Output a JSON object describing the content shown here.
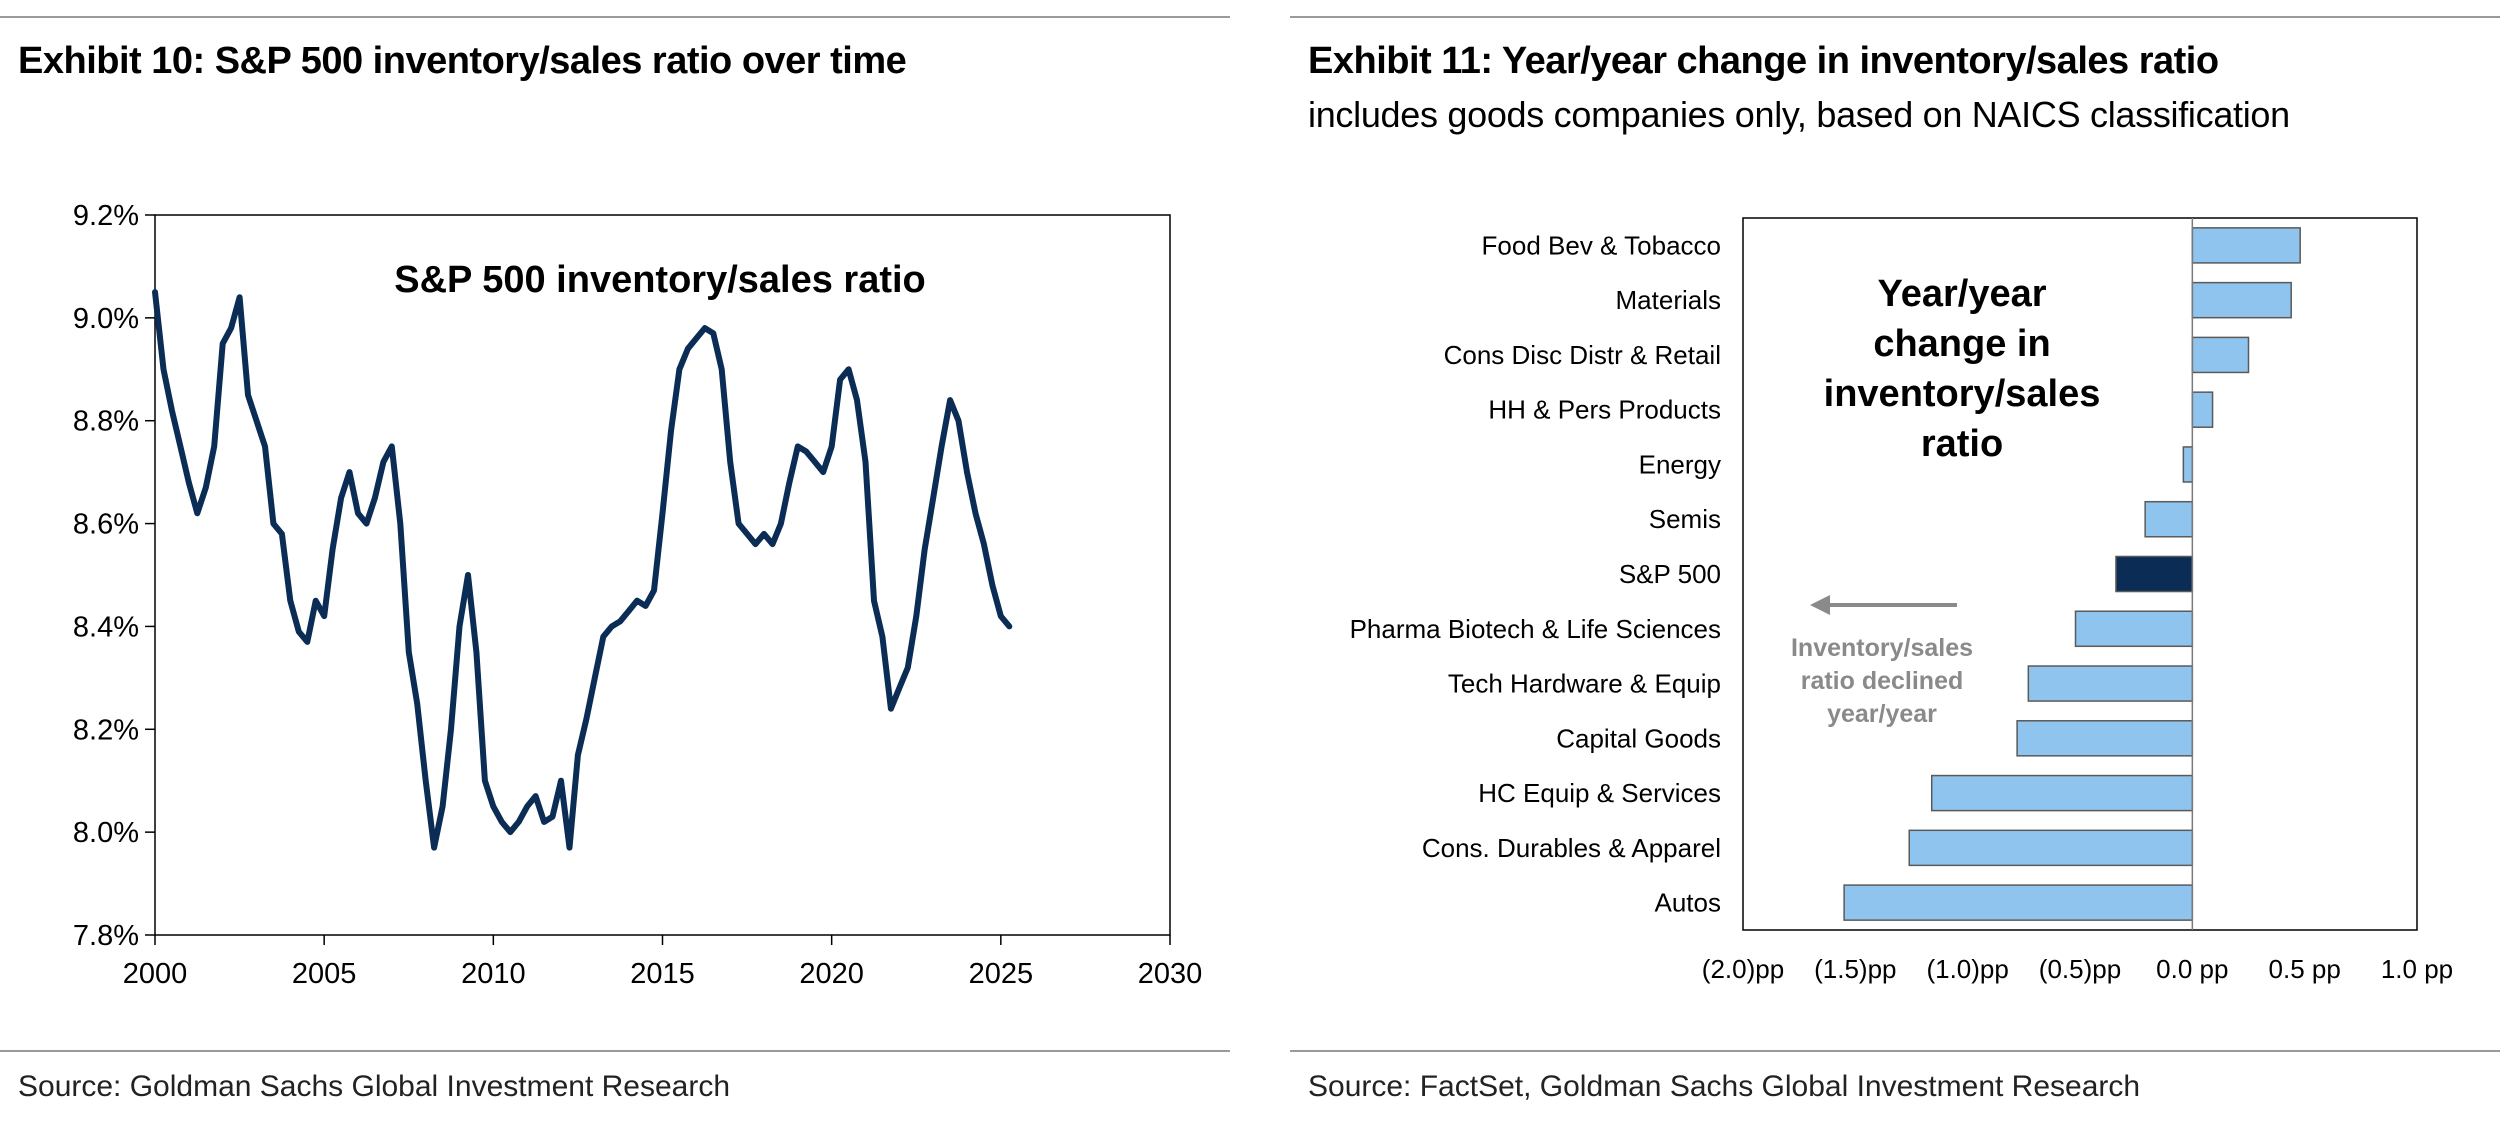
{
  "colors": {
    "line": "#0b2d55",
    "bar": "#8ec4ee",
    "bar_highlight": "#0b2d55",
    "bar_stroke": "#5a5a5a",
    "arrow": "#8a8a8a",
    "rule": "#9a9a9a"
  },
  "left": {
    "title": "Exhibit 10: S&P 500 inventory/sales ratio over time",
    "source": "Source: Goldman Sachs Global Investment Research"
  },
  "right": {
    "title": "Exhibit 11: Year/year change in inventory/sales ratio",
    "subtitle": "includes goods companies only, based on NAICS classification",
    "source": "Source: FactSet, Goldman Sachs Global Investment Research"
  },
  "chart_data": [
    {
      "type": "line",
      "title": "S&P 500 inventory/sales ratio",
      "xlabel": "",
      "ylabel": "",
      "xlim": [
        2000,
        2030
      ],
      "ylim": [
        7.8,
        9.2
      ],
      "xticks": [
        2000,
        2005,
        2010,
        2015,
        2020,
        2025,
        2030
      ],
      "yticks": [
        7.8,
        8.0,
        8.2,
        8.4,
        8.6,
        8.8,
        9.0,
        9.2
      ],
      "ytick_labels": [
        "7.8%",
        "8.0%",
        "8.2%",
        "8.4%",
        "8.6%",
        "8.8%",
        "9.0%",
        "9.2%"
      ],
      "grid": false,
      "series": [
        {
          "x": [
            2000.0,
            2000.25,
            2000.5,
            2000.75,
            2001.0,
            2001.25,
            2001.5,
            2001.75,
            2002.0,
            2002.25,
            2002.5,
            2002.75,
            2003.0,
            2003.25,
            2003.5,
            2003.75,
            2004.0,
            2004.25,
            2004.5,
            2004.75,
            2005.0,
            2005.25,
            2005.5,
            2005.75,
            2006.0,
            2006.25,
            2006.5,
            2006.75,
            2007.0,
            2007.25,
            2007.5,
            2007.75,
            2008.0,
            2008.25,
            2008.5,
            2008.75,
            2009.0,
            2009.25,
            2009.5,
            2009.75,
            2010.0,
            2010.25,
            2010.5,
            2010.75,
            2011.0,
            2011.25,
            2011.5,
            2011.75,
            2012.0,
            2012.25,
            2012.5,
            2012.75,
            2013.0,
            2013.25,
            2013.5,
            2013.75,
            2014.0,
            2014.25,
            2014.5,
            2014.75,
            2015.0,
            2015.25,
            2015.5,
            2015.75,
            2016.0,
            2016.25,
            2016.5,
            2016.75,
            2017.0,
            2017.25,
            2017.5,
            2017.75,
            2018.0,
            2018.25,
            2018.5,
            2018.75,
            2019.0,
            2019.25,
            2019.5,
            2019.75,
            2020.0,
            2020.25,
            2020.5,
            2020.75,
            2021.0,
            2021.25,
            2021.5,
            2021.75,
            2022.0,
            2022.25,
            2022.5,
            2022.75,
            2023.0,
            2023.25,
            2023.5,
            2023.75,
            2024.0,
            2024.25,
            2024.5,
            2024.75,
            2025.0,
            2025.25
          ],
          "y": [
            9.05,
            8.9,
            8.82,
            8.75,
            8.68,
            8.62,
            8.67,
            8.75,
            8.95,
            8.98,
            9.04,
            8.85,
            8.8,
            8.75,
            8.6,
            8.58,
            8.45,
            8.39,
            8.37,
            8.45,
            8.42,
            8.55,
            8.65,
            8.7,
            8.62,
            8.6,
            8.65,
            8.72,
            8.75,
            8.6,
            8.35,
            8.25,
            8.1,
            7.97,
            8.05,
            8.2,
            8.4,
            8.5,
            8.35,
            8.1,
            8.05,
            8.02,
            8.0,
            8.02,
            8.05,
            8.07,
            8.02,
            8.03,
            8.1,
            7.97,
            8.15,
            8.22,
            8.3,
            8.38,
            8.4,
            8.41,
            8.43,
            8.45,
            8.44,
            8.47,
            8.62,
            8.78,
            8.9,
            8.94,
            8.96,
            8.98,
            8.97,
            8.9,
            8.72,
            8.6,
            8.58,
            8.56,
            8.58,
            8.56,
            8.6,
            8.68,
            8.75,
            8.74,
            8.72,
            8.7,
            8.75,
            8.88,
            8.9,
            8.84,
            8.72,
            8.45,
            8.38,
            8.24,
            8.28,
            8.32,
            8.42,
            8.55,
            8.65,
            8.75,
            8.84,
            8.8,
            8.7,
            8.62,
            8.56,
            8.48,
            8.42,
            8.4
          ]
        }
      ]
    },
    {
      "type": "bar",
      "orientation": "horizontal",
      "title": "Year/year change in inventory/sales ratio",
      "xlim": [
        -2.0,
        1.0
      ],
      "xticks": [
        -2.0,
        -1.5,
        -1.0,
        -0.5,
        0.0,
        0.5,
        1.0
      ],
      "xtick_labels": [
        "(2.0)pp",
        "(1.5)pp",
        "(1.0)pp",
        "(0.5)pp",
        "0.0 pp",
        "0.5 pp",
        "1.0 pp"
      ],
      "grid": false,
      "categories": [
        "Food Bev & Tobacco",
        "Materials",
        "Cons Disc Distr & Retail",
        "HH & Pers Products",
        "Energy",
        "Semis",
        "S&P 500",
        "Pharma Biotech & Life Sciences",
        "Tech Hardware & Equip",
        "Capital Goods",
        "HC Equip & Services",
        "Cons. Durables & Apparel",
        "Autos"
      ],
      "values": [
        0.48,
        0.44,
        0.25,
        0.09,
        -0.04,
        -0.21,
        -0.34,
        -0.52,
        -0.73,
        -0.78,
        -1.16,
        -1.26,
        -1.55
      ],
      "highlight": "S&P 500",
      "annotation": {
        "lines": [
          "Inventory/sales",
          "ratio declined",
          "year/year"
        ]
      }
    }
  ]
}
